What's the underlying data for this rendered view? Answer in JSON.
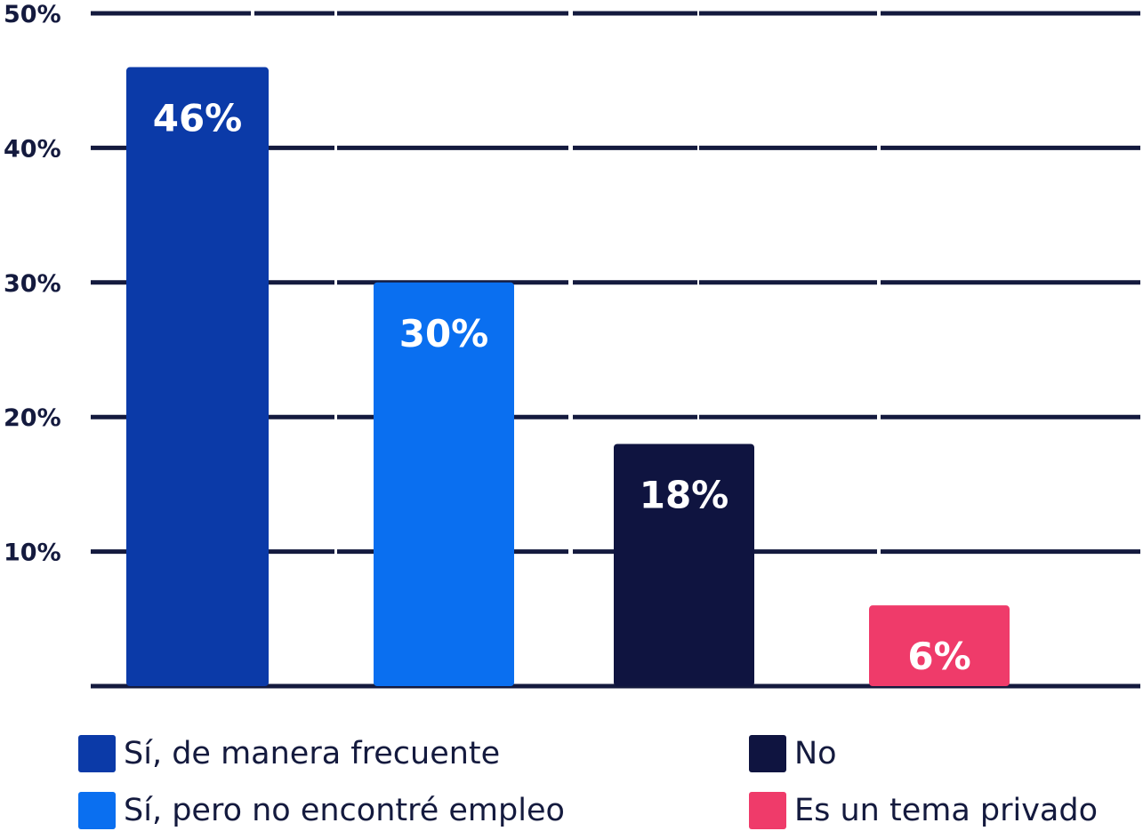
{
  "chart_data": {
    "type": "bar",
    "categories": [
      "Sí, de manera frecuente",
      "Sí, pero no encontré empleo",
      "No",
      "Es un tema privado"
    ],
    "values": [
      46,
      30,
      18,
      6
    ],
    "value_labels": [
      "46%",
      "30%",
      "18%",
      "6%"
    ],
    "colors": [
      "#0b3aa8",
      "#0a6ff0",
      "#0f1440",
      "#ef3b6a"
    ],
    "ylim": [
      0,
      50
    ],
    "yticks": [
      {
        "value": 10,
        "label": "10%"
      },
      {
        "value": 20,
        "label": "20%"
      },
      {
        "value": 30,
        "label": "30%"
      },
      {
        "value": 40,
        "label": "40%"
      },
      {
        "value": 50,
        "label": "50%"
      }
    ],
    "grid": true,
    "legend_position": "bottom"
  },
  "legend": [
    {
      "label": "Sí, de manera frecuente",
      "color": "#0b3aa8"
    },
    {
      "label": "Sí, pero no encontré empleo",
      "color": "#0a6ff0"
    },
    {
      "label": "No",
      "color": "#0f1440"
    },
    {
      "label": "Es un tema privado",
      "color": "#ef3b6a"
    }
  ]
}
